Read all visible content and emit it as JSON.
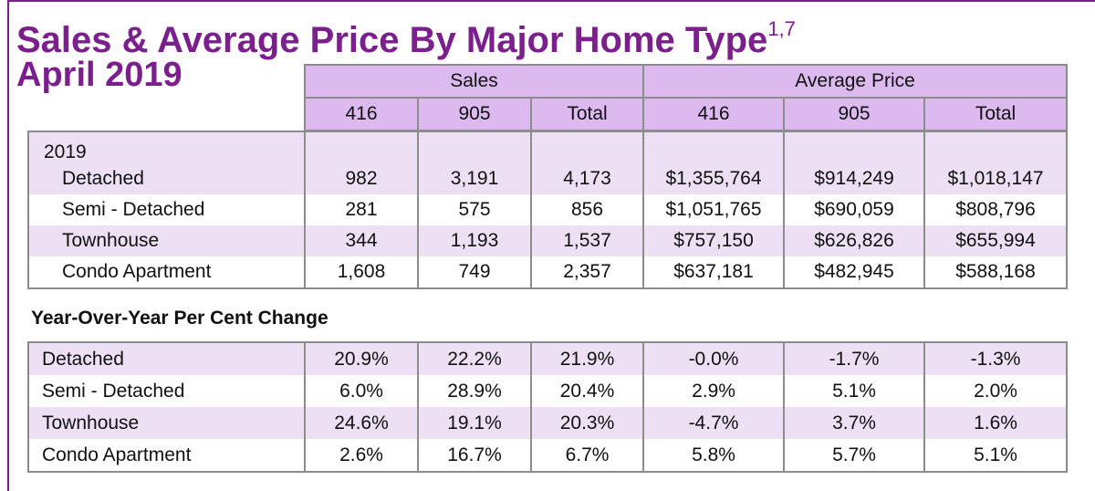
{
  "title": "Sales & Average Price By Major Home Type",
  "title_footnote": "1,7",
  "subtitle": "April 2019",
  "header": {
    "groups": [
      "Sales",
      "Average Price"
    ],
    "columns": [
      "416",
      "905",
      "Total",
      "416",
      "905",
      "Total"
    ]
  },
  "main": {
    "year_label": "2019",
    "rows": [
      {
        "label": "Detached",
        "cells": [
          "982",
          "3,191",
          "4,173",
          "$1,355,764",
          "$914,249",
          "$1,018,147"
        ]
      },
      {
        "label": "Semi - Detached",
        "cells": [
          "281",
          "575",
          "856",
          "$1,051,765",
          "$690,059",
          "$808,796"
        ]
      },
      {
        "label": "Townhouse",
        "cells": [
          "344",
          "1,193",
          "1,537",
          "$757,150",
          "$626,826",
          "$655,994"
        ]
      },
      {
        "label": "Condo Apartment",
        "cells": [
          "1,608",
          "749",
          "2,357",
          "$637,181",
          "$482,945",
          "$588,168"
        ]
      }
    ]
  },
  "yoy": {
    "label": "Year-Over-Year Per Cent Change",
    "rows": [
      {
        "label": "Detached",
        "cells": [
          "20.9%",
          "22.2%",
          "21.9%",
          "-0.0%",
          "-1.7%",
          "-1.3%"
        ]
      },
      {
        "label": "Semi - Detached",
        "cells": [
          "6.0%",
          "28.9%",
          "20.4%",
          "2.9%",
          "5.1%",
          "2.0%"
        ]
      },
      {
        "label": "Townhouse",
        "cells": [
          "24.6%",
          "19.1%",
          "20.3%",
          "-4.7%",
          "3.7%",
          "1.6%"
        ]
      },
      {
        "label": "Condo Apartment",
        "cells": [
          "2.6%",
          "16.7%",
          "6.7%",
          "5.8%",
          "5.7%",
          "5.1%"
        ]
      }
    ]
  },
  "colors": {
    "title": "#7b1f8c",
    "header_fill": "#dcb9ef",
    "row_shade": "#ede0f4",
    "border": "#8c8c8c"
  }
}
